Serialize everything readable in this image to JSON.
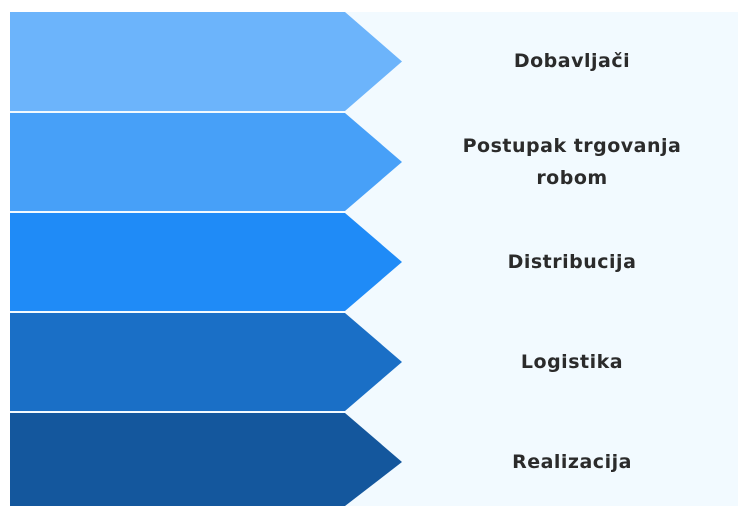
{
  "steps": [
    {
      "label": "Dobavljači"
    },
    {
      "label": "Postupak trgovanja robom"
    },
    {
      "label": "Distribucija"
    },
    {
      "label": "Logistika"
    },
    {
      "label": "Realizacija"
    }
  ]
}
